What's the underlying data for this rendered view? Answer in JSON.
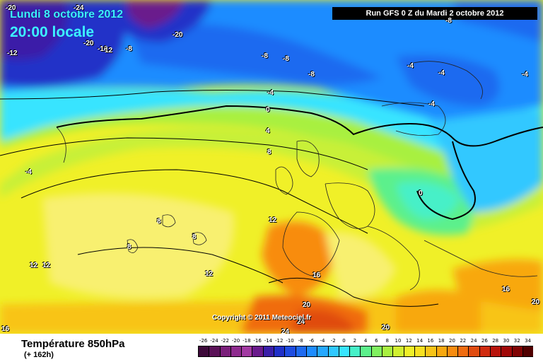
{
  "header": {
    "date": "Lundi 8 octobre 2012",
    "time": "20:00 locale",
    "run": "Run GFS 0 Z du Mardi 2 octobre 2012"
  },
  "copyright": "Copyright © 2011 Meteociel.fr",
  "footer": {
    "title": "Température 850hPa",
    "subtitle": "(+ 162h)"
  },
  "isotherm_labels": [
    {
      "text": "-24"
    },
    {
      "text": "-20"
    },
    {
      "text": "-20"
    },
    {
      "text": "-20"
    },
    {
      "text": "-16"
    },
    {
      "text": "12"
    },
    {
      "text": "-8"
    },
    {
      "text": "-12"
    },
    {
      "text": "-8"
    },
    {
      "text": "-8"
    },
    {
      "text": "-8"
    },
    {
      "text": "-4"
    },
    {
      "text": "-4"
    },
    {
      "text": "-4"
    },
    {
      "text": "-4"
    },
    {
      "text": "-4"
    },
    {
      "text": "-8"
    },
    {
      "text": "0"
    },
    {
      "text": "4"
    },
    {
      "text": "8"
    },
    {
      "text": "-4"
    },
    {
      "text": "0"
    },
    {
      "text": "12"
    },
    {
      "text": "8"
    },
    {
      "text": "8"
    },
    {
      "text": "8"
    },
    {
      "text": "12"
    },
    {
      "text": "12"
    },
    {
      "text": "12"
    },
    {
      "text": "16"
    },
    {
      "text": "16"
    },
    {
      "text": "20"
    },
    {
      "text": "24"
    },
    {
      "text": "24"
    },
    {
      "text": "20"
    },
    {
      "text": "20"
    },
    {
      "text": "16"
    }
  ],
  "scale": {
    "labels": [
      "-26",
      "-24",
      "-22",
      "-20",
      "-18",
      "-16",
      "-14",
      "-12",
      "-10",
      "-8",
      "-6",
      "-4",
      "-2",
      "0",
      "2",
      "4",
      "6",
      "8",
      "10",
      "12",
      "14",
      "16",
      "18",
      "20",
      "22",
      "24",
      "26",
      "28",
      "30",
      "32",
      "34"
    ],
    "colors": [
      "#3d0a3a",
      "#5a1157",
      "#7a1f7a",
      "#8e2b8e",
      "#a23aa2",
      "#6a1a8c",
      "#3a1ea8",
      "#2030c8",
      "#1e4ce0",
      "#1e6af0",
      "#1e8cff",
      "#26a8ff",
      "#30c8ff",
      "#38e4ff",
      "#46f0c8",
      "#5cf08c",
      "#80f060",
      "#a8f040",
      "#d0f030",
      "#f0f028",
      "#f8e020",
      "#f8c418",
      "#f8a810",
      "#f88c10",
      "#f06c10",
      "#e04c10",
      "#d02c10",
      "#b8140c",
      "#a00808",
      "#800404",
      "#500000"
    ]
  }
}
